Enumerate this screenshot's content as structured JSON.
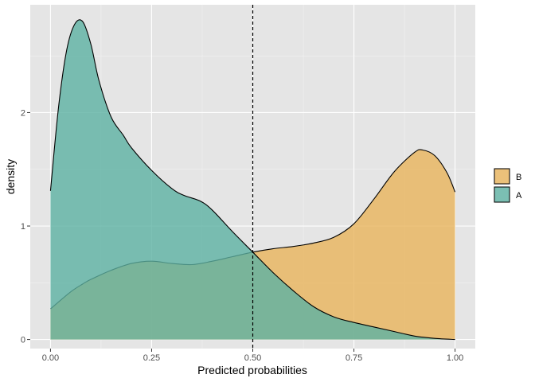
{
  "chart_data": {
    "type": "area",
    "subtype": "density",
    "title": "",
    "xlabel": "Predicted probabilities",
    "ylabel": "density",
    "xlim": [
      -0.05,
      1.05
    ],
    "ylim": [
      -0.08,
      2.95
    ],
    "x_ticks": [
      0.0,
      0.25,
      0.5,
      0.75,
      1.0
    ],
    "x_tick_labels": [
      "0.00",
      "0.25",
      "0.50",
      "0.75",
      "1.00"
    ],
    "y_ticks": [
      0,
      1,
      2
    ],
    "y_tick_labels": [
      "0",
      "1",
      "2"
    ],
    "grid": true,
    "panel_background": "#e5e5e5",
    "vline": {
      "x": 0.5,
      "style": "dashed",
      "color": "#000000"
    },
    "legend": {
      "position": "right",
      "entries": [
        "B",
        "A"
      ]
    },
    "series": [
      {
        "name": "B",
        "color": "#E8B45B",
        "alpha": 0.8,
        "x": [
          0.0,
          0.05,
          0.08,
          0.1,
          0.15,
          0.2,
          0.25,
          0.3,
          0.35,
          0.4,
          0.45,
          0.5,
          0.55,
          0.6,
          0.65,
          0.7,
          0.75,
          0.8,
          0.85,
          0.9,
          0.92,
          0.95,
          0.98,
          1.0
        ],
        "y": [
          0.27,
          0.42,
          0.49,
          0.53,
          0.61,
          0.67,
          0.69,
          0.67,
          0.66,
          0.69,
          0.73,
          0.77,
          0.8,
          0.82,
          0.85,
          0.9,
          1.02,
          1.24,
          1.48,
          1.65,
          1.67,
          1.62,
          1.47,
          1.3
        ]
      },
      {
        "name": "A",
        "color": "#5DB1A3",
        "alpha": 0.8,
        "x": [
          0.0,
          0.02,
          0.04,
          0.06,
          0.08,
          0.1,
          0.12,
          0.15,
          0.18,
          0.2,
          0.25,
          0.3,
          0.33,
          0.37,
          0.4,
          0.45,
          0.5,
          0.55,
          0.6,
          0.65,
          0.7,
          0.75,
          0.8,
          0.85,
          0.9,
          0.95,
          1.0
        ],
        "y": [
          1.31,
          2.05,
          2.55,
          2.78,
          2.8,
          2.6,
          2.28,
          1.96,
          1.8,
          1.69,
          1.49,
          1.33,
          1.27,
          1.22,
          1.14,
          0.95,
          0.77,
          0.59,
          0.43,
          0.29,
          0.2,
          0.15,
          0.11,
          0.07,
          0.03,
          0.01,
          0.0
        ]
      }
    ]
  }
}
